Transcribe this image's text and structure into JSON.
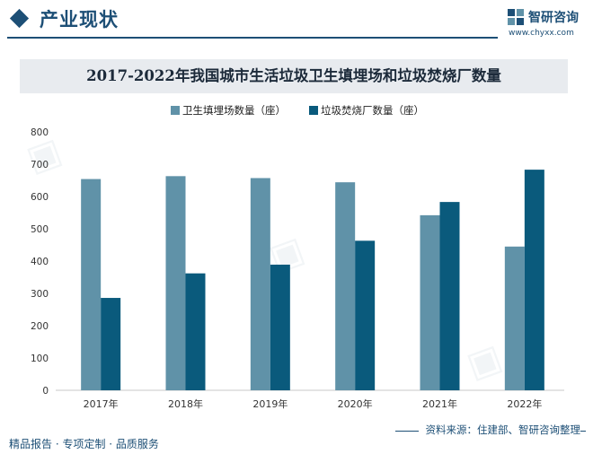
{
  "header": {
    "section_title": "产业现状",
    "brand_name": "智研咨询",
    "brand_url": "www.chyxx.com"
  },
  "footer": {
    "left_text": "精品报告 · 专项定制 · 品质服务",
    "source_text": "资料来源：住建部、智研咨询整理"
  },
  "colors": {
    "series1": "#6092a8",
    "series2": "#0a5a7c",
    "brand": "#1d4f76"
  },
  "chart_data": {
    "type": "bar",
    "title": "2017-2022年我国城市生活垃圾卫生填埋场和垃圾焚烧厂数量",
    "categories": [
      "2017年",
      "2018年",
      "2019年",
      "2020年",
      "2021年",
      "2022年"
    ],
    "series": [
      {
        "name": "卫生填埋场数量（座）",
        "values": [
          654,
          663,
          657,
          644,
          542,
          445
        ]
      },
      {
        "name": "垃圾焚烧厂数量（座）",
        "values": [
          286,
          362,
          389,
          463,
          583,
          683
        ]
      }
    ],
    "ylim": [
      0,
      800
    ],
    "yticks": [
      0,
      100,
      200,
      300,
      400,
      500,
      600,
      700,
      800
    ],
    "xlabel": "",
    "ylabel": "",
    "legend": "top-center",
    "grid": false
  }
}
